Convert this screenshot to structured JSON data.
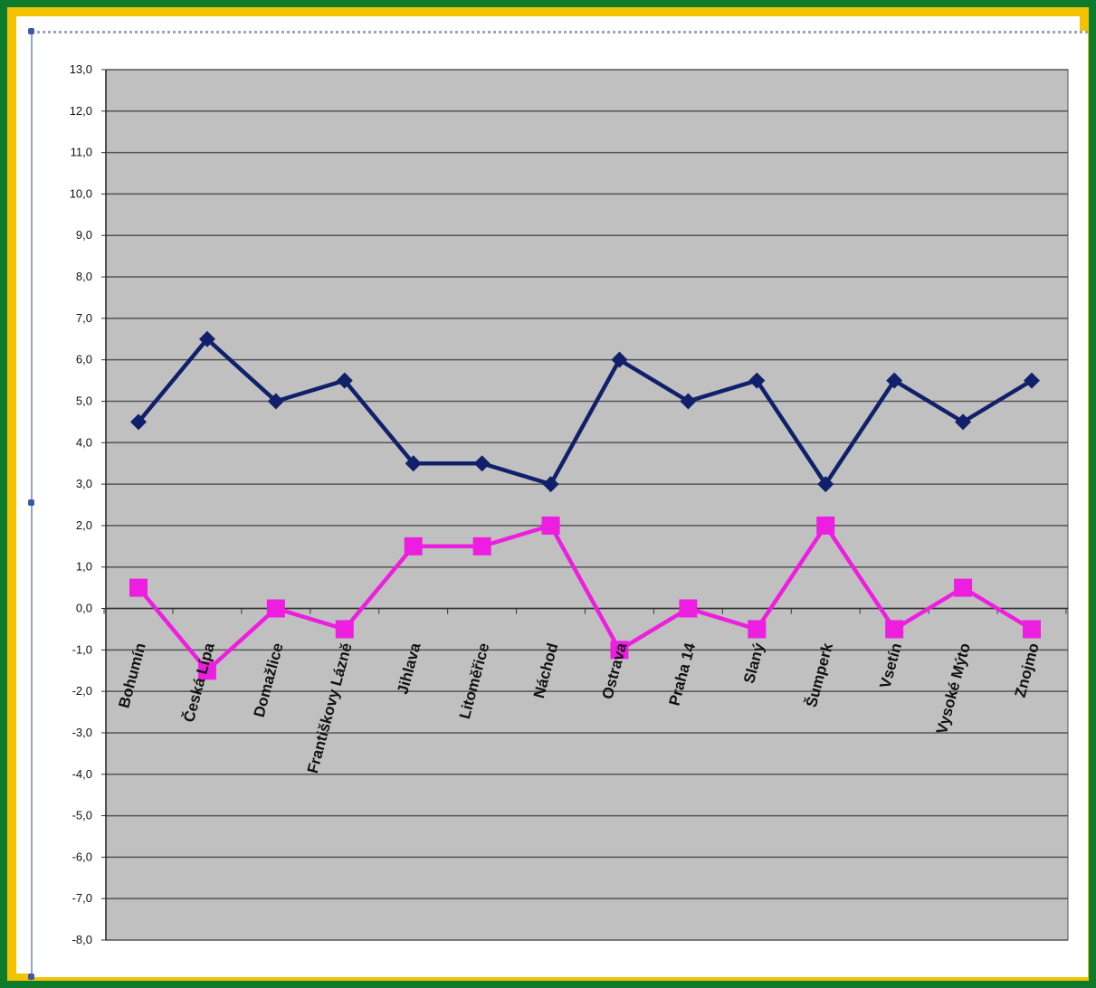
{
  "chart_data": {
    "type": "line",
    "categories": [
      "Bohumín",
      "Česká Lípa",
      "Domažlice",
      "Františkovy Lázně",
      "Jihlava",
      "Litoměřice",
      "Náchod",
      "Ostrava",
      "Praha 14",
      "Slaný",
      "Šumperk",
      "Vsetín",
      "Vysoké Mýto",
      "Znojmo"
    ],
    "series": [
      {
        "values": [
          4.5,
          6.5,
          5.0,
          5.5,
          3.5,
          3.5,
          3.0,
          6.0,
          5.0,
          5.5,
          3.0,
          5.5,
          4.5,
          5.5
        ],
        "color": "#10206a",
        "marker": "diamond"
      },
      {
        "values": [
          0.5,
          -1.5,
          0.0,
          -0.5,
          1.5,
          1.5,
          2.0,
          -1.0,
          0.0,
          -0.5,
          2.0,
          -0.5,
          0.5,
          -0.5
        ],
        "color": "#ee1ee0",
        "marker": "square"
      }
    ],
    "yticks": [
      "13,0",
      "12,0",
      "11,0",
      "10,0",
      "9,0",
      "8,0",
      "7,0",
      "6,0",
      "5,0",
      "4,0",
      "3,0",
      "2,0",
      "1,0",
      "0,0",
      "-1,0",
      "-2,0",
      "-3,0",
      "-4,0",
      "-5,0",
      "-6,0",
      "-7,0",
      "-8,0"
    ],
    "ylim": [
      -8,
      13
    ],
    "grid": true,
    "plot_background": "#c0c0c0"
  }
}
